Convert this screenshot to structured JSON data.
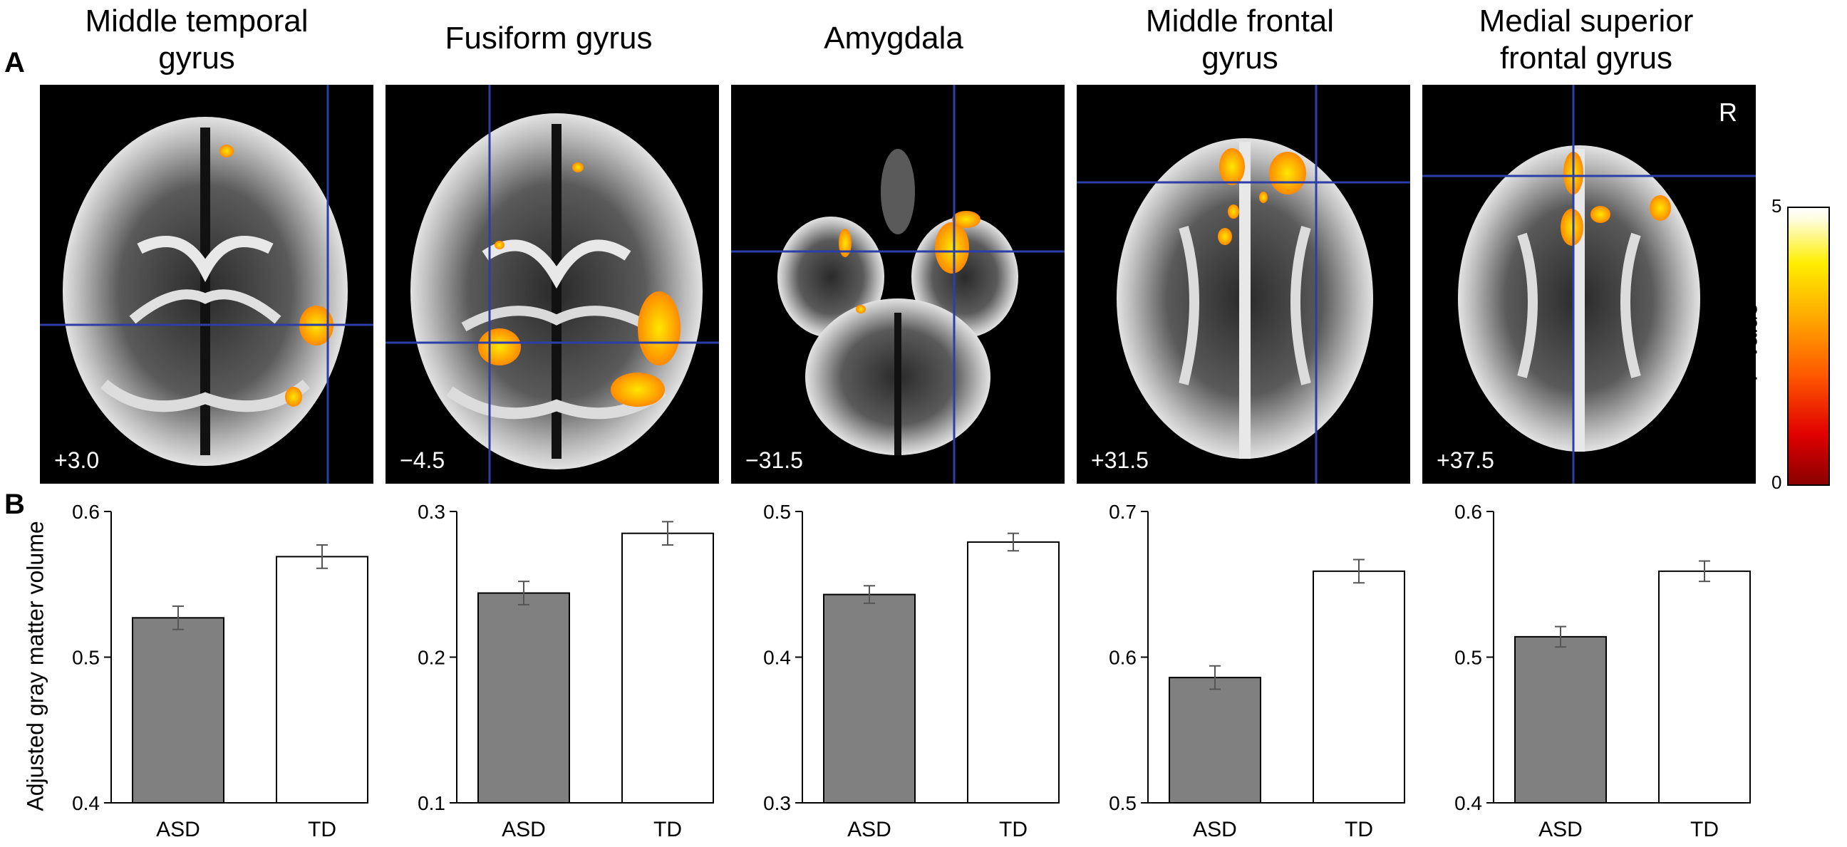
{
  "panels": {
    "a": "A",
    "b": "B"
  },
  "colorbar": {
    "title_italic": "T",
    "title_rest": "–value",
    "ticks": [
      "0",
      "5"
    ]
  },
  "orientation_label": "R",
  "ylabel": "Adjusted gray matter volume",
  "regions": [
    {
      "title_lines": [
        "Middle temporal",
        "gyrus"
      ],
      "slice": "+3.0"
    },
    {
      "title_lines": [
        "Fusiform gyrus"
      ],
      "slice": "−4.5"
    },
    {
      "title_lines": [
        "Amygdala"
      ],
      "slice": "−31.5"
    },
    {
      "title_lines": [
        "Middle frontal",
        "gyrus"
      ],
      "slice": "+31.5"
    },
    {
      "title_lines": [
        "Medial superior",
        "frontal gyrus"
      ],
      "slice": "+37.5"
    }
  ],
  "chart_data": [
    {
      "type": "bar",
      "categories": [
        "ASD",
        "TD"
      ],
      "values": [
        0.527,
        0.569
      ],
      "errors": [
        0.008,
        0.008
      ],
      "ylim": [
        0.4,
        0.6
      ],
      "yticks": [
        "0.4",
        "0.5",
        "0.6"
      ],
      "xlabel": "",
      "ylabel": "Adjusted gray matter volume",
      "colors": [
        "#808080",
        "#ffffff"
      ]
    },
    {
      "type": "bar",
      "categories": [
        "ASD",
        "TD"
      ],
      "values": [
        0.244,
        0.285
      ],
      "errors": [
        0.008,
        0.008
      ],
      "ylim": [
        0.1,
        0.3
      ],
      "yticks": [
        "0.1",
        "0.2",
        "0.3"
      ],
      "xlabel": "",
      "ylabel": "",
      "colors": [
        "#808080",
        "#ffffff"
      ]
    },
    {
      "type": "bar",
      "categories": [
        "ASD",
        "TD"
      ],
      "values": [
        0.443,
        0.479
      ],
      "errors": [
        0.006,
        0.006
      ],
      "ylim": [
        0.3,
        0.5
      ],
      "yticks": [
        "0.3",
        "0.4",
        "0.5"
      ],
      "xlabel": "",
      "ylabel": "",
      "colors": [
        "#808080",
        "#ffffff"
      ]
    },
    {
      "type": "bar",
      "categories": [
        "ASD",
        "TD"
      ],
      "values": [
        0.586,
        0.659
      ],
      "errors": [
        0.008,
        0.008
      ],
      "ylim": [
        0.5,
        0.7
      ],
      "yticks": [
        "0.5",
        "0.6",
        "0.7"
      ],
      "xlabel": "",
      "ylabel": "",
      "colors": [
        "#808080",
        "#ffffff"
      ]
    },
    {
      "type": "bar",
      "categories": [
        "ASD",
        "TD"
      ],
      "values": [
        0.514,
        0.559
      ],
      "errors": [
        0.007,
        0.007
      ],
      "ylim": [
        0.4,
        0.6
      ],
      "yticks": [
        "0.4",
        "0.5",
        "0.6"
      ],
      "xlabel": "",
      "ylabel": "",
      "colors": [
        "#808080",
        "#ffffff"
      ]
    }
  ]
}
